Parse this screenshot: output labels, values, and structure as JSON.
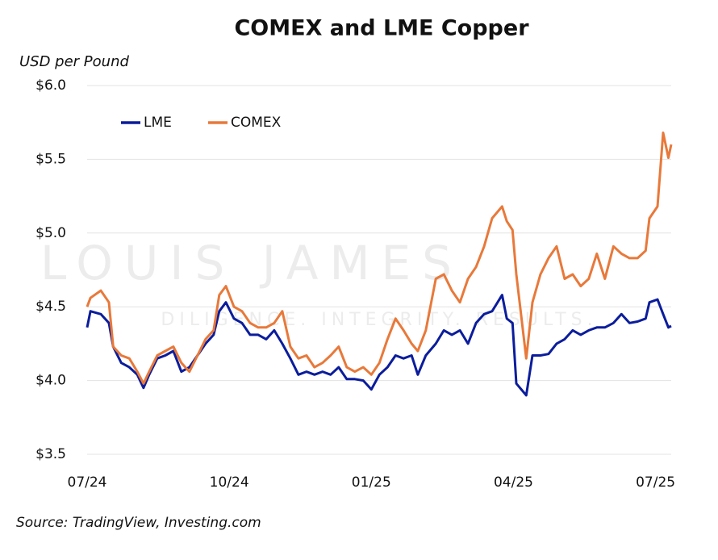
{
  "chart_data": {
    "type": "line",
    "title": "COMEX and LME Copper",
    "y_label": "USD per Pound",
    "source": "Source: TradingView, Investing.com",
    "watermark": "LOUIS JAMES",
    "watermark_tagline": "DILIGENCE. INTEGRITY. RESULTS.",
    "x": [
      0,
      0.07,
      0.29,
      0.46,
      0.55,
      0.72,
      0.89,
      1.06,
      1.19,
      1.31,
      1.48,
      1.65,
      1.82,
      1.99,
      2.16,
      2.33,
      2.5,
      2.67,
      2.79,
      2.93,
      3.1,
      3.27,
      3.44,
      3.61,
      3.78,
      3.95,
      4.12,
      4.29,
      4.46,
      4.63,
      4.8,
      4.97,
      5.14,
      5.31,
      5.48,
      5.65,
      5.83,
      6.0,
      6.17,
      6.34,
      6.51,
      6.68,
      6.85,
      6.98,
      7.15,
      7.36,
      7.53,
      7.7,
      7.87,
      8.04,
      8.21,
      8.38,
      8.55,
      8.76,
      8.86,
      8.98,
      9.06,
      9.27,
      9.4,
      9.57,
      9.74,
      9.91,
      10.08,
      10.25,
      10.42,
      10.59,
      10.76,
      10.93,
      11.11,
      11.28,
      11.45,
      11.62,
      11.79,
      11.87,
      12.04,
      12.16,
      12.27,
      12.33
    ],
    "series": [
      {
        "name": "LME",
        "color": "#0b1d9c",
        "values": [
          4.36,
          4.47,
          4.45,
          4.39,
          4.23,
          4.12,
          4.09,
          4.04,
          3.95,
          4.04,
          4.15,
          4.17,
          4.2,
          4.06,
          4.09,
          4.17,
          4.25,
          4.31,
          4.47,
          4.53,
          4.42,
          4.39,
          4.31,
          4.31,
          4.28,
          4.34,
          4.25,
          4.15,
          4.04,
          4.06,
          4.04,
          4.06,
          4.04,
          4.09,
          4.01,
          4.01,
          4.0,
          3.94,
          4.04,
          4.09,
          4.17,
          4.15,
          4.17,
          4.04,
          4.17,
          4.25,
          4.34,
          4.31,
          4.34,
          4.25,
          4.39,
          4.45,
          4.47,
          4.58,
          4.42,
          4.39,
          3.98,
          3.9,
          4.17,
          4.17,
          4.18,
          4.25,
          4.28,
          4.34,
          4.31,
          4.34,
          4.36,
          4.36,
          4.39,
          4.45,
          4.39,
          4.4,
          4.42,
          4.53,
          4.55,
          4.45,
          4.36,
          4.37
        ]
      },
      {
        "name": "COMEX",
        "color": "#e8793a",
        "values": [
          4.5,
          4.56,
          4.61,
          4.53,
          4.23,
          4.17,
          4.15,
          4.06,
          3.98,
          4.06,
          4.17,
          4.2,
          4.23,
          4.12,
          4.06,
          4.17,
          4.28,
          4.34,
          4.58,
          4.64,
          4.5,
          4.47,
          4.39,
          4.36,
          4.36,
          4.39,
          4.47,
          4.23,
          4.15,
          4.17,
          4.09,
          4.12,
          4.17,
          4.23,
          4.09,
          4.06,
          4.09,
          4.04,
          4.12,
          4.28,
          4.42,
          4.34,
          4.25,
          4.2,
          4.34,
          4.69,
          4.72,
          4.61,
          4.53,
          4.69,
          4.77,
          4.91,
          5.1,
          5.18,
          5.08,
          5.02,
          4.72,
          4.15,
          4.53,
          4.72,
          4.83,
          4.91,
          4.69,
          4.72,
          4.64,
          4.69,
          4.86,
          4.69,
          4.91,
          4.86,
          4.83,
          4.83,
          4.88,
          5.1,
          5.18,
          5.68,
          5.51,
          5.6
        ]
      }
    ],
    "xlim": [
      0,
      12.33
    ],
    "xticks": [
      {
        "value": 0,
        "label": "07/24"
      },
      {
        "value": 3,
        "label": "10/24"
      },
      {
        "value": 6,
        "label": "01/25"
      },
      {
        "value": 9,
        "label": "04/25"
      },
      {
        "value": 12,
        "label": "07/25"
      }
    ],
    "ylim": [
      3.5,
      6.0
    ],
    "yticks": [
      {
        "value": 3.5,
        "label": "$3.5"
      },
      {
        "value": 4.0,
        "label": "$4.0"
      },
      {
        "value": 4.5,
        "label": "$4.5"
      },
      {
        "value": 5.0,
        "label": "$5.0"
      },
      {
        "value": 5.5,
        "label": "$5.5"
      },
      {
        "value": 6.0,
        "label": "$6.0"
      }
    ],
    "grid": true,
    "legend": "top-left"
  }
}
